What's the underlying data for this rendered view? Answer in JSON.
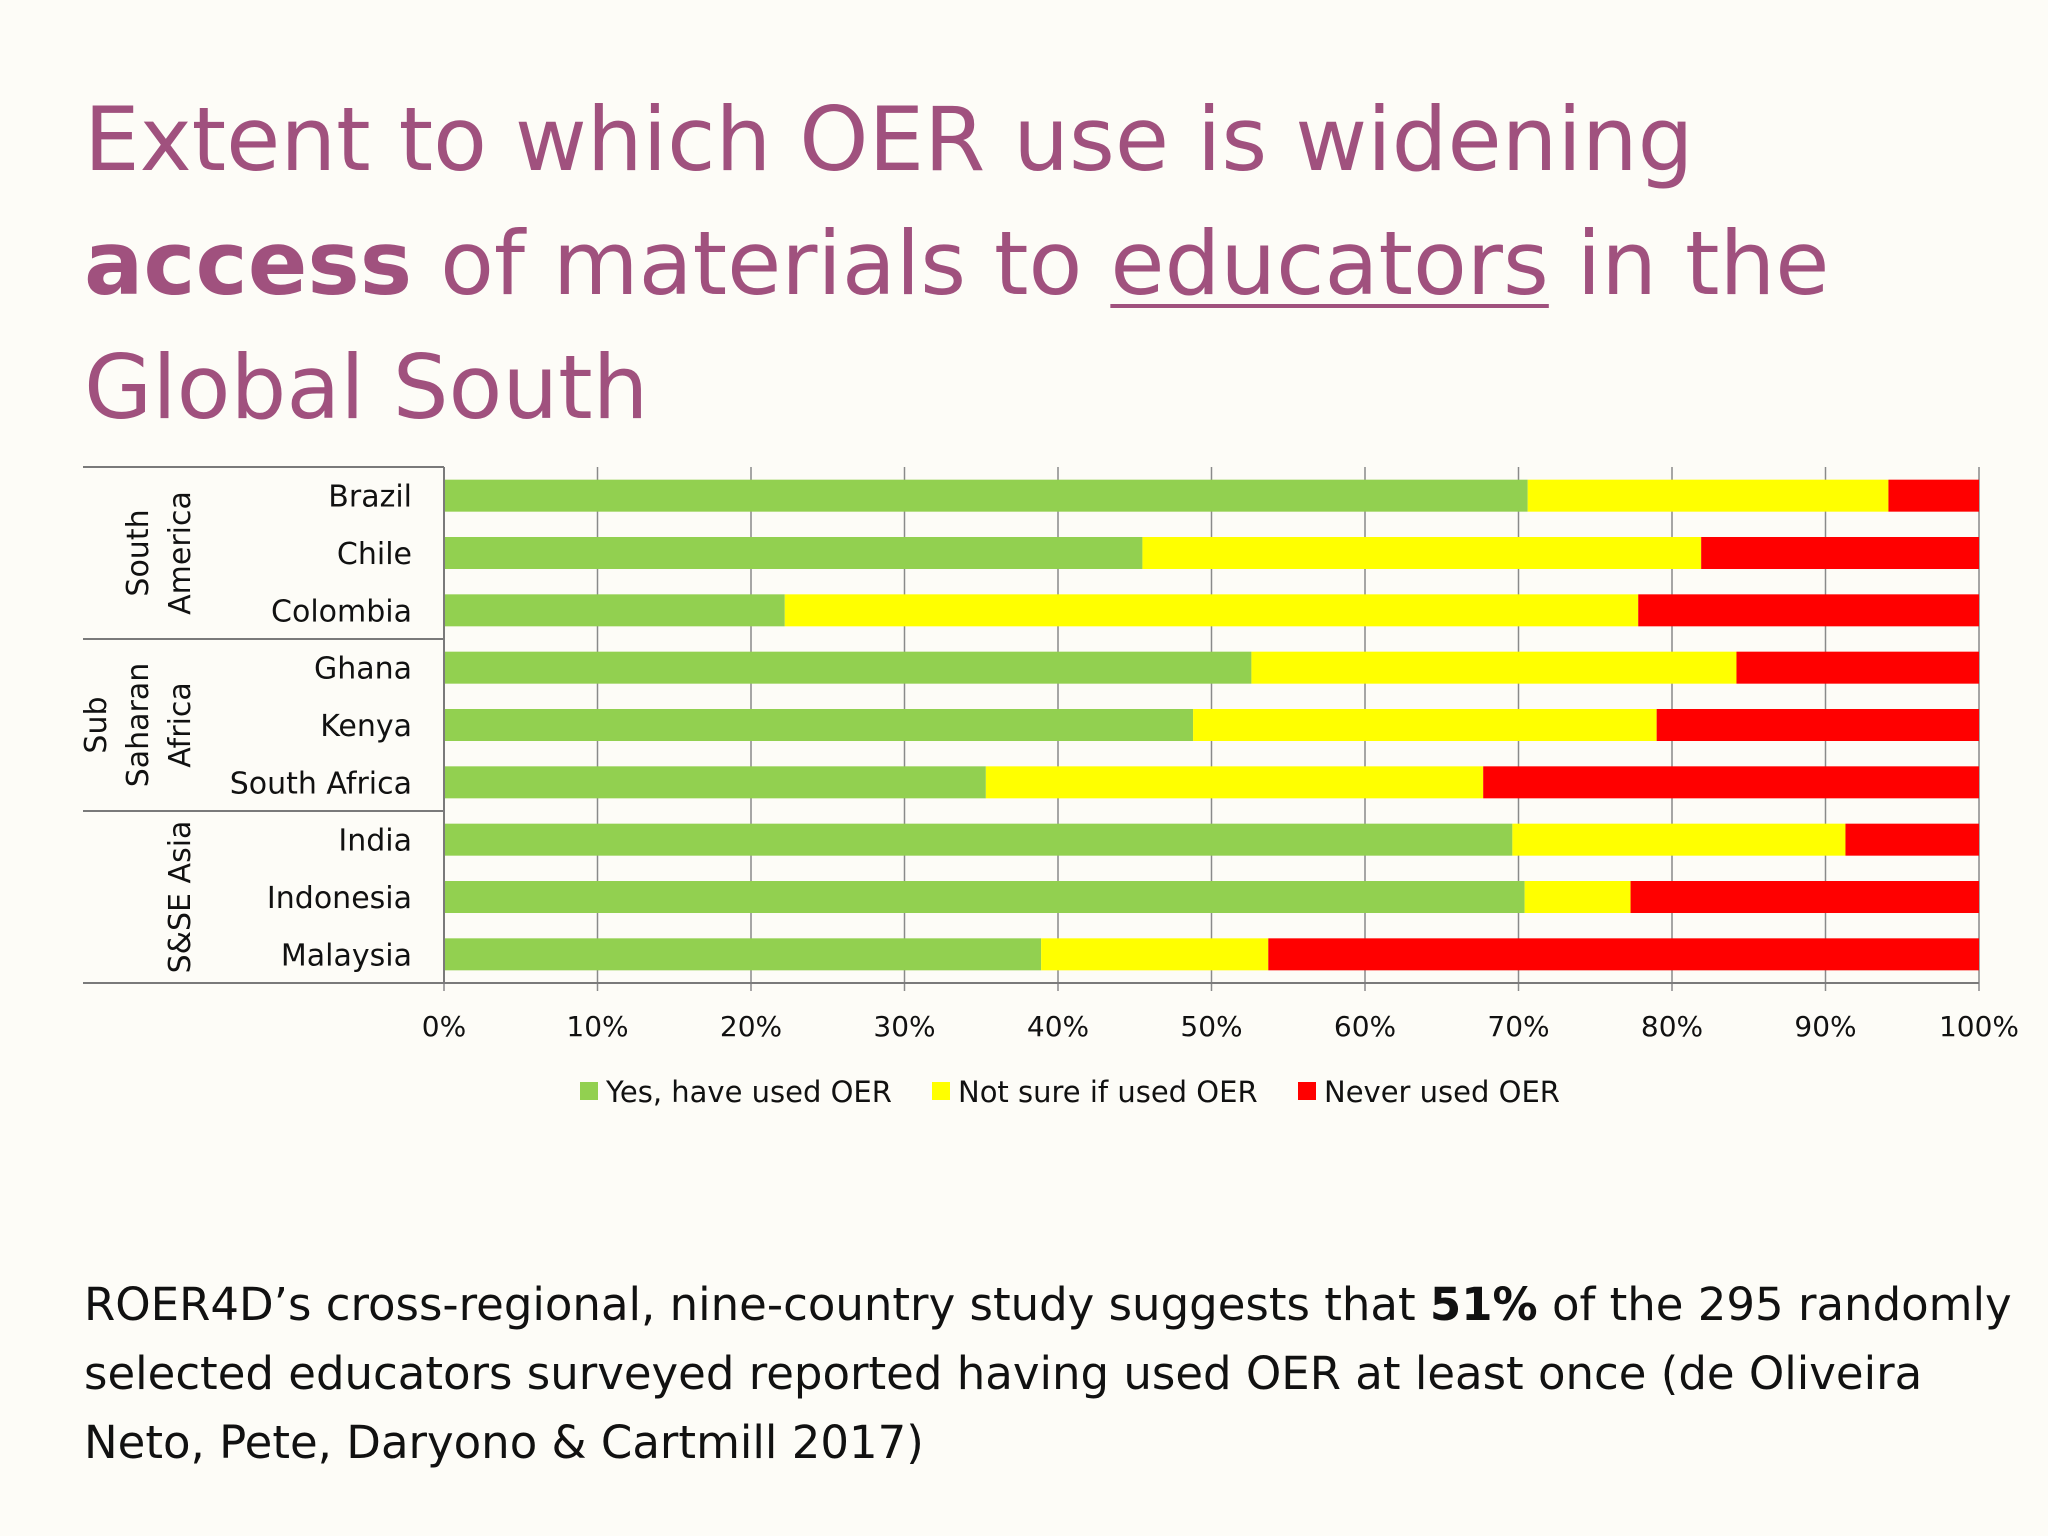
{
  "title": {
    "part1": "Extent to which OER use is widening ",
    "bold": "access",
    "part2": " of materials to ",
    "underline": "educators",
    "part3": " in the Global South"
  },
  "caption": {
    "part1": "ROER4D’s cross-regional, nine-country study suggests that ",
    "bold": "51%",
    "part2": " of the 295 randomly selected educators surveyed reported having used OER at least once (de Oliveira Neto, Pete, Daryono & Cartmill 2017)"
  },
  "colors": {
    "title": "#a0517e",
    "yes": "#92d050",
    "not_sure": "#ffff00",
    "never": "#ff0000"
  },
  "chart_data": {
    "type": "bar",
    "orientation": "horizontal",
    "stacked": "100%",
    "categories": [
      "Brazil",
      "Chile",
      "Colombia",
      "Ghana",
      "Kenya",
      "South Africa",
      "India",
      "Indonesia",
      "Malaysia"
    ],
    "groups": [
      {
        "label_lines": [
          "South",
          "America"
        ],
        "categories": [
          "Brazil",
          "Chile",
          "Colombia"
        ]
      },
      {
        "label_lines": [
          "Sub",
          "Saharan",
          "Africa"
        ],
        "categories": [
          "Ghana",
          "Kenya",
          "South Africa"
        ]
      },
      {
        "label_lines": [
          "S&SE Asia"
        ],
        "categories": [
          "India",
          "Indonesia",
          "Malaysia"
        ]
      }
    ],
    "series": [
      {
        "name": "Yes, have used OER",
        "color": "#92d050",
        "values": [
          70.6,
          45.5,
          22.2,
          52.6,
          48.8,
          35.3,
          69.6,
          70.4,
          38.9
        ]
      },
      {
        "name": "Not sure if used OER",
        "color": "#ffff00",
        "values": [
          23.5,
          36.4,
          55.6,
          31.6,
          30.2,
          32.4,
          21.7,
          6.9,
          14.8
        ]
      },
      {
        "name": "Never used OER",
        "color": "#ff0000",
        "values": [
          5.9,
          18.1,
          22.2,
          15.8,
          21.0,
          32.3,
          8.7,
          22.7,
          46.3
        ]
      }
    ],
    "xticks": [
      "0%",
      "10%",
      "20%",
      "30%",
      "40%",
      "50%",
      "60%",
      "70%",
      "80%",
      "90%",
      "100%"
    ],
    "xlim": [
      0,
      100
    ],
    "grid": true,
    "legend": "bottom"
  }
}
